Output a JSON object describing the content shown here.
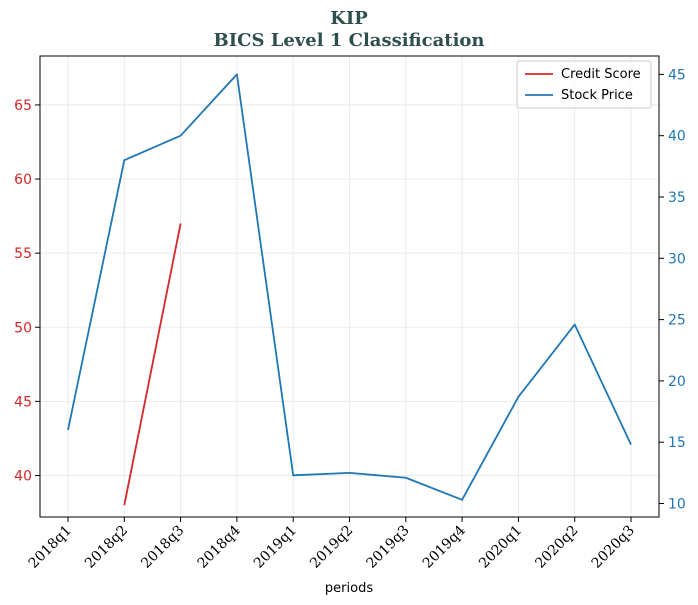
{
  "chart_data": {
    "type": "line",
    "title": "KIP",
    "subtitle": "BICS Level 1 Classification",
    "xlabel": "periods",
    "categories": [
      "2018q1",
      "2018q2",
      "2018q3",
      "2018q4",
      "2019q1",
      "2019q2",
      "2019q3",
      "2019q4",
      "2020q1",
      "2020q2",
      "2020q3"
    ],
    "left_axis": {
      "ylim": [
        37.2,
        68.3
      ],
      "ticks": [
        40,
        45,
        50,
        55,
        60,
        65
      ],
      "color": "#d62728"
    },
    "right_axis": {
      "ylim": [
        8.9,
        46.5
      ],
      "ticks": [
        10,
        15,
        20,
        25,
        30,
        35,
        40,
        45
      ],
      "color": "#1f77b4"
    },
    "series": [
      {
        "name": "Credit Score",
        "axis": "left",
        "color": "#d62728",
        "values": [
          null,
          38,
          57,
          null,
          null,
          null,
          null,
          null,
          null,
          null,
          null
        ]
      },
      {
        "name": "Stock Price",
        "axis": "right",
        "color": "#1f77b4",
        "values": [
          16.0,
          38.0,
          40.0,
          45.0,
          12.3,
          12.5,
          12.1,
          10.3,
          18.7,
          24.6,
          14.8
        ]
      }
    ],
    "legend": "top-right",
    "grid": true
  }
}
